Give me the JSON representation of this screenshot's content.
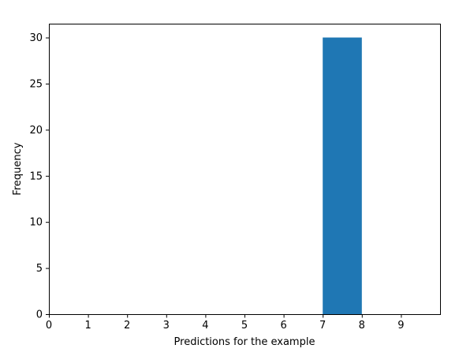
{
  "chart_data": {
    "type": "bar",
    "title": "",
    "xlabel": "Predictions for the example",
    "ylabel": "Frequency",
    "bin_edges": [
      0,
      1,
      2,
      3,
      4,
      5,
      6,
      7,
      8,
      9,
      10
    ],
    "counts": [
      0,
      0,
      0,
      0,
      0,
      0,
      0,
      30,
      0,
      0
    ],
    "xlim": [
      0,
      10
    ],
    "ylim": [
      0,
      31.5
    ],
    "xticks": [
      0,
      1,
      2,
      3,
      4,
      5,
      6,
      7,
      8,
      9
    ],
    "yticks": [
      0,
      5,
      10,
      15,
      20,
      25,
      30
    ],
    "bar_color": "#1f77b4",
    "grid": false,
    "legend": "none"
  }
}
